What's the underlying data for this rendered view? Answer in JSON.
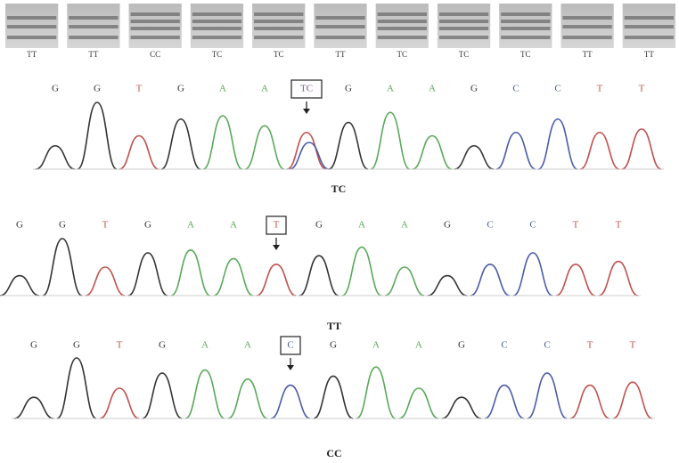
{
  "gel": {
    "lanes": [
      "TT",
      "TT",
      "CC",
      "TC",
      "TC",
      "TT",
      "TC",
      "TC",
      "TC",
      "TT",
      "TT"
    ]
  },
  "panels": [
    {
      "before": [
        "G",
        "G",
        "T",
        "G",
        "A",
        "A"
      ],
      "variant": "TC",
      "after": [
        "G",
        "A",
        "A",
        "G",
        "C",
        "C",
        "T",
        "T"
      ],
      "genotype": "TC"
    },
    {
      "before": [
        "G",
        "G",
        "T",
        "G",
        "A",
        "A"
      ],
      "variant": "T",
      "after": [
        "G",
        "A",
        "A",
        "G",
        "C",
        "C",
        "T",
        "T"
      ],
      "genotype": "TT"
    },
    {
      "before": [
        "G",
        "G",
        "T",
        "G",
        "A",
        "A"
      ],
      "variant": "C",
      "after": [
        "G",
        "A",
        "A",
        "G",
        "C",
        "C",
        "T",
        "T"
      ],
      "genotype": "CC"
    }
  ]
}
